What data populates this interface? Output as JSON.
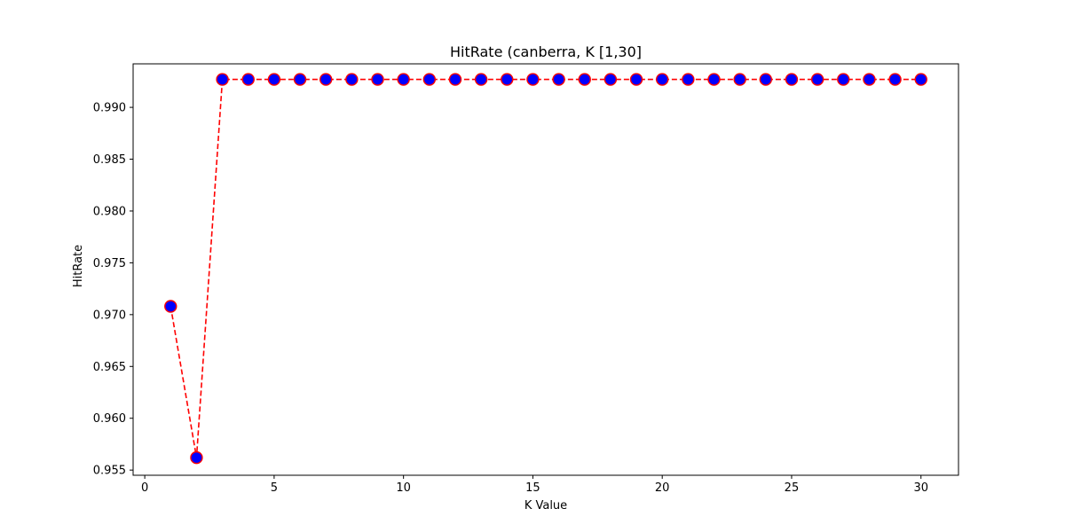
{
  "chart_data": {
    "type": "line",
    "title": "HitRate (canberra, K [1,30]",
    "xlabel": "K Value",
    "ylabel": "HitRate",
    "xlim": [
      -0.45,
      31.45
    ],
    "ylim": [
      0.9545,
      0.9942
    ],
    "x_ticks": [
      0,
      5,
      10,
      15,
      20,
      25,
      30
    ],
    "y_ticks": [
      0.955,
      0.96,
      0.965,
      0.97,
      0.975,
      0.98,
      0.985,
      0.99
    ],
    "y_tick_labels": [
      "0.955",
      "0.960",
      "0.965",
      "0.970",
      "0.975",
      "0.980",
      "0.985",
      "0.990"
    ],
    "grid": false,
    "line_color": "#ff0000",
    "line_style": "dashed",
    "marker": "circle",
    "marker_face_color": "#0000ff",
    "marker_edge_color": "#ff0000",
    "series": [
      {
        "x": [
          1,
          2,
          3,
          4,
          5,
          6,
          7,
          8,
          9,
          10,
          11,
          12,
          13,
          14,
          15,
          16,
          17,
          18,
          19,
          20,
          21,
          22,
          23,
          24,
          25,
          26,
          27,
          28,
          29,
          30
        ],
        "values": [
          0.9708,
          0.9562,
          0.9927,
          0.9927,
          0.9927,
          0.9927,
          0.9927,
          0.9927,
          0.9927,
          0.9927,
          0.9927,
          0.9927,
          0.9927,
          0.9927,
          0.9927,
          0.9927,
          0.9927,
          0.9927,
          0.9927,
          0.9927,
          0.9927,
          0.9927,
          0.9927,
          0.9927,
          0.9927,
          0.9927,
          0.9927,
          0.9927,
          0.9927,
          0.9927
        ]
      }
    ]
  }
}
